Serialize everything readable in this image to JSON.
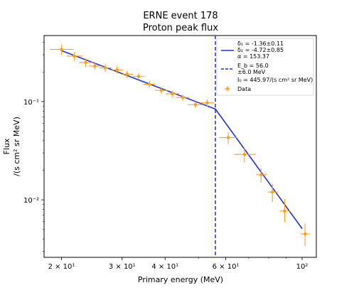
{
  "chart_data": {
    "type": "scatter",
    "title": "ERNE event 178",
    "subtitle": "Proton peak flux",
    "xlabel": "Primary energy (MeV)",
    "ylabel_line1": "Flux",
    "ylabel_line2": "/(s cm² sr MeV)",
    "x_scale": "log",
    "y_scale": "log",
    "xlim": [
      17.8,
      110
    ],
    "ylim": [
      0.0026,
      0.47
    ],
    "grid": false,
    "legend_position": "top-right",
    "x_ticks": [
      {
        "value": 20,
        "label": "2 × 10¹"
      },
      {
        "value": 30,
        "label": "3 × 10¹"
      },
      {
        "value": 40,
        "label": "4 × 10¹"
      },
      {
        "value": 60,
        "label": "6 × 10¹"
      },
      {
        "value": 100,
        "label": "10²"
      }
    ],
    "y_ticks": [
      {
        "value": 0.1,
        "label": "10⁻¹"
      },
      {
        "value": 0.01,
        "label": "10⁻²"
      }
    ],
    "colors": {
      "data": "#ff9f1c",
      "fit": "#1f2fd6",
      "break": "#1f2fd6"
    },
    "legend": {
      "fit_lines": [
        "δ₁ = -1.36±0.11",
        "δ₂ = -4.72±0.85",
        "α = 153.37"
      ],
      "break_lines": [
        "E_b = 56.0",
        "±6.0 MeV"
      ],
      "norm_line": "I₀ = 445.97/(s cm² sr MeV)",
      "data_label": "Data"
    },
    "fit": {
      "x": [
        20,
        56,
        100
      ],
      "y": [
        0.33,
        0.084,
        0.0051
      ]
    },
    "break_energy": 56.0,
    "series": [
      {
        "name": "Data",
        "points": [
          {
            "x": 20.0,
            "y": 0.34,
            "xerr": [
              1.5,
              1.7
            ],
            "yerr": [
              0.04,
              0.04
            ]
          },
          {
            "x": 21.8,
            "y": 0.29,
            "xerr": [
              1.1,
              1.3
            ],
            "yerr": [
              0.03,
              0.03
            ]
          },
          {
            "x": 23.5,
            "y": 0.25,
            "xerr": [
              1.0,
              1.2
            ],
            "yerr": [
              0.025,
              0.025
            ]
          },
          {
            "x": 25.0,
            "y": 0.23,
            "xerr": [
              1.0,
              1.1
            ],
            "yerr": [
              0.02,
              0.02
            ]
          },
          {
            "x": 26.8,
            "y": 0.22,
            "xerr": [
              1.0,
              1.1
            ],
            "yerr": [
              0.02,
              0.02
            ]
          },
          {
            "x": 29.0,
            "y": 0.21,
            "xerr": [
              1.0,
              1.2
            ],
            "yerr": [
              0.018,
              0.018
            ]
          },
          {
            "x": 31.0,
            "y": 0.19,
            "xerr": [
              1.2,
              1.3
            ],
            "yerr": [
              0.015,
              0.015
            ]
          },
          {
            "x": 33.5,
            "y": 0.18,
            "xerr": [
              1.3,
              1.4
            ],
            "yerr": [
              0.013,
              0.013
            ]
          },
          {
            "x": 36.0,
            "y": 0.15,
            "xerr": [
              1.4,
              1.5
            ],
            "yerr": [
              0.012,
              0.012
            ]
          },
          {
            "x": 39.0,
            "y": 0.13,
            "xerr": [
              1.6,
              1.7
            ],
            "yerr": [
              0.01,
              0.01
            ]
          },
          {
            "x": 42.0,
            "y": 0.12,
            "xerr": [
              1.8,
              1.9
            ],
            "yerr": [
              0.009,
              0.009
            ]
          },
          {
            "x": 45.0,
            "y": 0.11,
            "xerr": [
              2.0,
              2.1
            ],
            "yerr": [
              0.008,
              0.008
            ]
          },
          {
            "x": 49.0,
            "y": 0.093,
            "xerr": [
              2.5,
              2.6
            ],
            "yerr": [
              0.007,
              0.007
            ]
          },
          {
            "x": 53.0,
            "y": 0.097,
            "xerr": [
              2.4,
              2.5
            ],
            "yerr": [
              0.008,
              0.008
            ]
          },
          {
            "x": 61.0,
            "y": 0.043,
            "xerr": [
              3.5,
              4.0
            ],
            "yerr": [
              0.006,
              0.006
            ]
          },
          {
            "x": 68.0,
            "y": 0.029,
            "xerr": [
              4.5,
              5.5
            ],
            "yerr": [
              0.005,
              0.005
            ]
          },
          {
            "x": 76.0,
            "y": 0.018,
            "xerr": [
              2.5,
              3.0
            ],
            "yerr": [
              0.003,
              0.003
            ]
          },
          {
            "x": 82.0,
            "y": 0.012,
            "xerr": [
              2.5,
              3.0
            ],
            "yerr": [
              0.0025,
              0.0025
            ]
          },
          {
            "x": 89.0,
            "y": 0.0077,
            "xerr": [
              3.0,
              3.5
            ],
            "yerr": [
              0.0018,
              0.0025
            ]
          },
          {
            "x": 102.0,
            "y": 0.0045,
            "xerr": [
              3.0,
              3.5
            ],
            "yerr": [
              0.0011,
              0.0012
            ]
          }
        ]
      }
    ]
  }
}
